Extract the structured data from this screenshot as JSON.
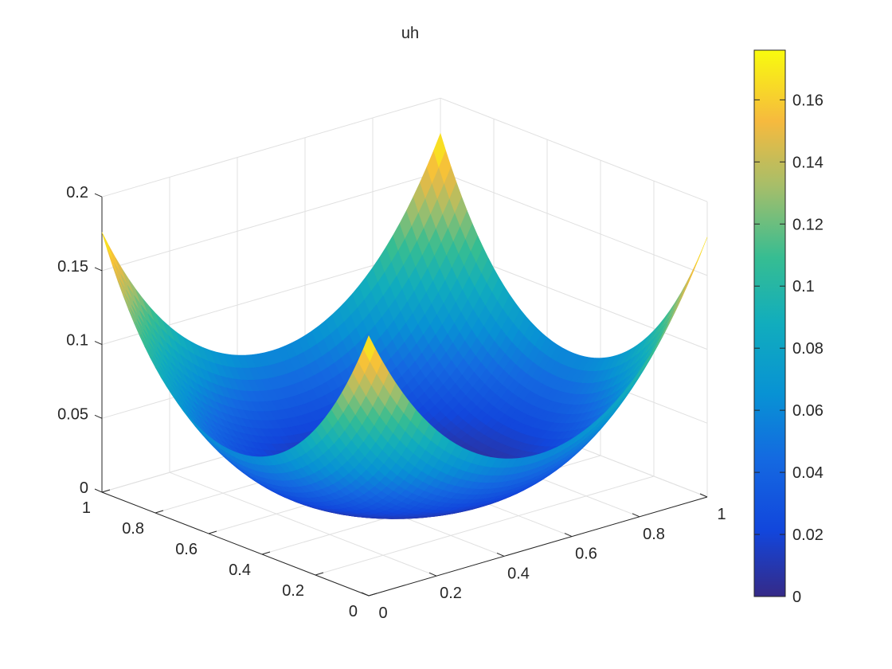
{
  "figure": {
    "title": "uh"
  },
  "chart_data": {
    "type": "surface",
    "title": "uh",
    "xlabel": "",
    "ylabel": "",
    "zlabel": "",
    "xlim": [
      0,
      1
    ],
    "ylim": [
      0,
      1
    ],
    "zlim": [
      0,
      0.2
    ],
    "x_ticks": [
      "0",
      "0.2",
      "0.4",
      "0.6",
      "0.8",
      "1"
    ],
    "y_ticks": [
      "0",
      "0.2",
      "0.4",
      "0.6",
      "0.8",
      "1"
    ],
    "z_ticks": [
      "0",
      "0.05",
      "0.1",
      "0.15",
      "0.2"
    ],
    "grid": true,
    "colormap": "parula",
    "colorbar": {
      "placement": "right",
      "clim": [
        0,
        0.176
      ],
      "ticks": [
        "0",
        "0.02",
        "0.04",
        "0.06",
        "0.08",
        "0.1",
        "0.12",
        "0.14",
        "0.16"
      ]
    },
    "surface": {
      "description_values": "u(x,y) on unit square, minimum ~0 at (0.5,0.5), corner values ~0.176",
      "samples": [
        {
          "x": 0,
          "y": 0,
          "z": 0.176
        },
        {
          "x": 1,
          "y": 0,
          "z": 0.176
        },
        {
          "x": 0,
          "y": 1,
          "z": 0.176
        },
        {
          "x": 1,
          "y": 1,
          "z": 0.176
        },
        {
          "x": 0.5,
          "y": 0,
          "z": 0.033
        },
        {
          "x": 0,
          "y": 0.5,
          "z": 0.033
        },
        {
          "x": 1,
          "y": 0.5,
          "z": 0.033
        },
        {
          "x": 0.5,
          "y": 1,
          "z": 0.033
        },
        {
          "x": 0.5,
          "y": 0.5,
          "z": 0.0
        }
      ]
    },
    "colors": {
      "axis": "#262626",
      "grid": "#e0e0e0",
      "background": "#ffffff"
    }
  }
}
